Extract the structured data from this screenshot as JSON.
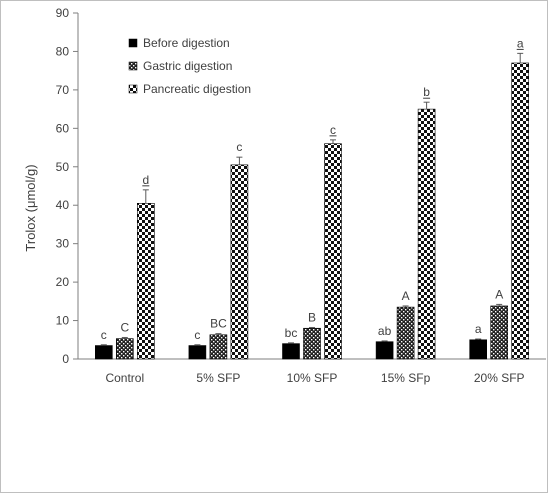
{
  "chart_data": {
    "type": "bar",
    "title": "",
    "xlabel": "",
    "ylabel": "Trolox (μmol/g)",
    "ylim": [
      0,
      90
    ],
    "yticks": [
      0,
      10,
      20,
      30,
      40,
      50,
      60,
      70,
      80,
      90
    ],
    "grid": false,
    "legend_position": "top-left",
    "categories": [
      "Control",
      "5% SFP",
      "10% SFP",
      "15% SFp",
      "20% SFP"
    ],
    "series": [
      {
        "name": "Before digestion",
        "pattern": "solid",
        "color": "#000000",
        "values": [
          3.5,
          3.5,
          4.0,
          4.5,
          5.0
        ],
        "errors": [
          0.2,
          0.2,
          0.2,
          0.2,
          0.2
        ],
        "labels": [
          "c",
          "c",
          "bc",
          "ab",
          "a"
        ],
        "underline": [
          false,
          false,
          false,
          false,
          false
        ]
      },
      {
        "name": "Gastric digestion",
        "pattern": "dotted",
        "color": "#000000",
        "values": [
          5.3,
          6.3,
          8.0,
          13.5,
          13.8
        ],
        "errors": [
          0.3,
          0.3,
          0.2,
          0.3,
          0.4
        ],
        "labels": [
          "C",
          "BC",
          "B",
          "A",
          "A"
        ],
        "underline": [
          false,
          false,
          false,
          false,
          false
        ]
      },
      {
        "name": "Pancreatic digestion",
        "pattern": "checker",
        "color": "#000000",
        "values": [
          40.5,
          50.5,
          56.0,
          65.0,
          77.0
        ],
        "errors": [
          3.5,
          2.0,
          1.0,
          1.8,
          2.5
        ],
        "labels": [
          "d",
          "c",
          "c",
          "b",
          "a"
        ],
        "underline": [
          true,
          false,
          true,
          true,
          true
        ]
      }
    ]
  }
}
